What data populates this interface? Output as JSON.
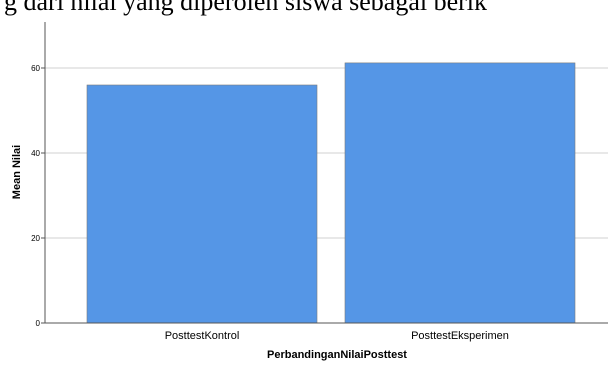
{
  "top_text": "g dari nilai yang diperoleh siswa sebagai berik",
  "chart_data": {
    "type": "bar",
    "categories": [
      "PosttestKontrol",
      "PosttestEksperimen"
    ],
    "values": [
      56,
      61.2
    ],
    "xlabel": "PerbandinganNilaiPosttest",
    "ylabel": "Mean Nilai",
    "ylim": [
      0,
      60
    ],
    "yticks": [
      0,
      20,
      40,
      60
    ],
    "grid": true,
    "bar_color": "#5596e6",
    "bar_edge_color": "#7a7a7a"
  }
}
